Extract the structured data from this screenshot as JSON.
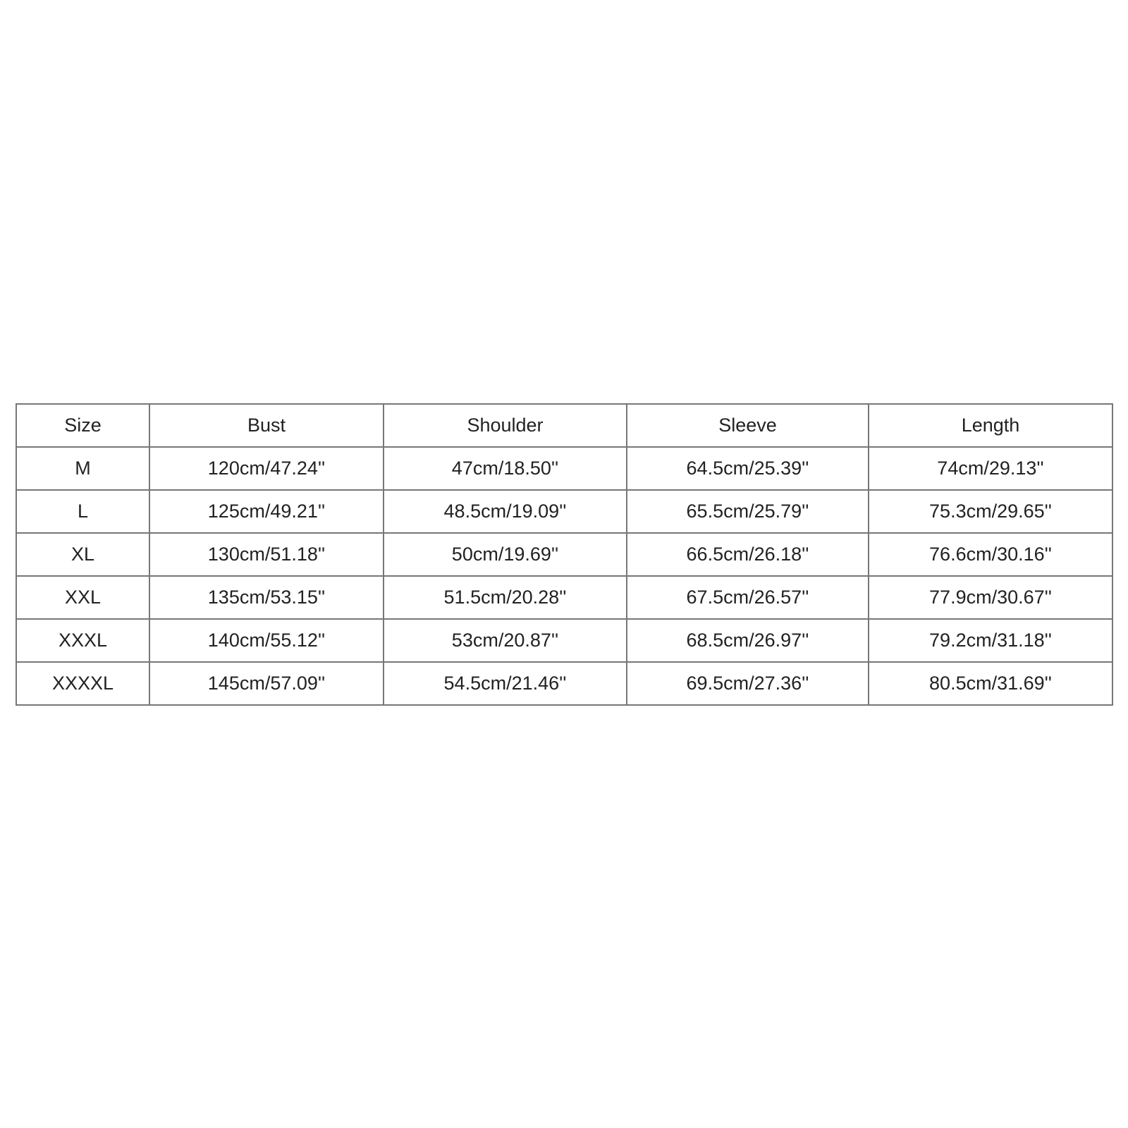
{
  "table": {
    "header": [
      "Size",
      "Bust",
      "Shoulder",
      "Sleeve",
      "Length"
    ],
    "rows": [
      [
        "M",
        "120cm/47.24''",
        "47cm/18.50''",
        "64.5cm/25.39''",
        "74cm/29.13''"
      ],
      [
        "L",
        "125cm/49.21''",
        "48.5cm/19.09''",
        "65.5cm/25.79''",
        "75.3cm/29.65''"
      ],
      [
        "XL",
        "130cm/51.18''",
        "50cm/19.69''",
        "66.5cm/26.18''",
        "76.6cm/30.16''"
      ],
      [
        "XXL",
        "135cm/53.15''",
        "51.5cm/20.28''",
        "67.5cm/26.57''",
        "77.9cm/30.67''"
      ],
      [
        "XXXL",
        "140cm/55.12''",
        "53cm/20.87''",
        "68.5cm/26.97''",
        "79.2cm/31.18''"
      ],
      [
        "XXXXL",
        "145cm/57.09''",
        "54.5cm/21.46''",
        "69.5cm/27.36''",
        "80.5cm/31.69''"
      ]
    ]
  }
}
